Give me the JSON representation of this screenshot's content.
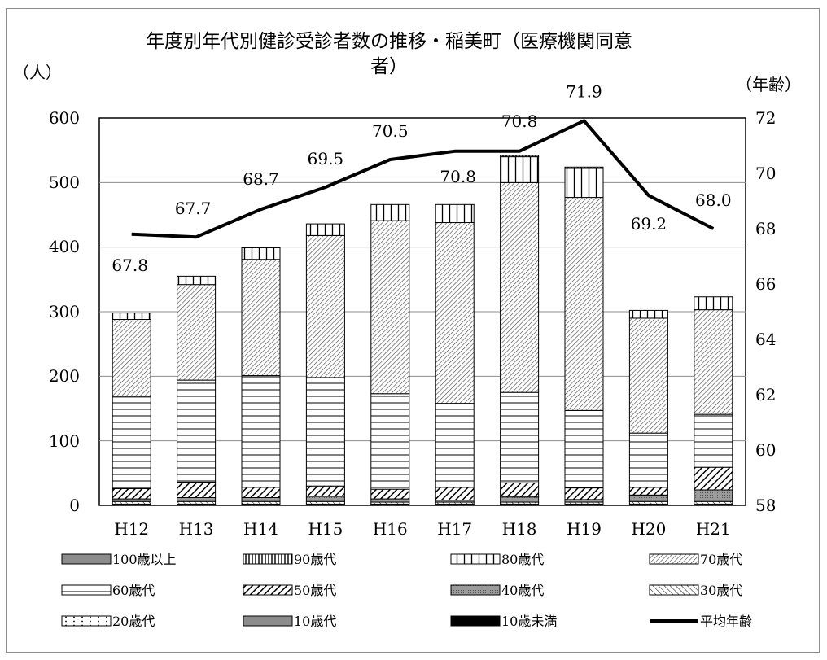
{
  "chart_data": {
    "type": "bar",
    "title_lines": [
      "年度別年代別健診受診者数の推移・稲美町（医療機関同意",
      "者）"
    ],
    "ylabel": "（人）",
    "y2label": "（年齢）",
    "ylim": [
      0,
      600
    ],
    "yticks": [
      "0",
      "100",
      "200",
      "300",
      "400",
      "500",
      "600"
    ],
    "y2lim": [
      58,
      72
    ],
    "y2ticks": [
      "58",
      "60",
      "62",
      "64",
      "66",
      "68",
      "70",
      "72"
    ],
    "grid": true,
    "legend_position": "bottom",
    "categories": [
      "H12",
      "H13",
      "H14",
      "H15",
      "H16",
      "H17",
      "H18",
      "H19",
      "H20",
      "H21"
    ],
    "series": [
      {
        "name": "100歳以上",
        "pattern": "gray",
        "values": [
          0,
          0,
          0,
          0,
          0,
          0,
          0,
          0,
          0,
          0
        ]
      },
      {
        "name": "90歳代",
        "pattern": "vdense",
        "values": [
          0,
          0,
          0,
          0,
          0,
          0,
          2,
          2,
          0,
          0
        ]
      },
      {
        "name": "80歳代",
        "pattern": "vert",
        "values": [
          10,
          13,
          18,
          18,
          25,
          28,
          40,
          45,
          12,
          20
        ]
      },
      {
        "name": "70歳代",
        "pattern": "diag_down",
        "values": [
          120,
          148,
          180,
          220,
          268,
          280,
          325,
          330,
          178,
          162
        ]
      },
      {
        "name": "60歳代",
        "pattern": "horiz",
        "values": [
          142,
          158,
          173,
          168,
          148,
          130,
          140,
          120,
          84,
          82
        ]
      },
      {
        "name": "50歳代",
        "pattern": "diag_down_bold",
        "values": [
          16,
          24,
          16,
          16,
          15,
          20,
          22,
          18,
          12,
          35
        ]
      },
      {
        "name": "40歳代",
        "pattern": "dotgray",
        "values": [
          4,
          6,
          6,
          8,
          5,
          3,
          8,
          4,
          10,
          18
        ]
      },
      {
        "name": "30歳代",
        "pattern": "diag_up",
        "values": [
          4,
          4,
          4,
          4,
          3,
          3,
          3,
          3,
          4,
          4
        ]
      },
      {
        "name": "20歳代",
        "pattern": "dots",
        "values": [
          2,
          2,
          2,
          2,
          2,
          2,
          2,
          2,
          2,
          2
        ]
      },
      {
        "name": "10歳代",
        "pattern": "gray",
        "values": [
          0,
          0,
          0,
          0,
          0,
          0,
          0,
          0,
          0,
          0
        ]
      },
      {
        "name": "10歳未満",
        "pattern": "black",
        "values": [
          0,
          0,
          0,
          0,
          0,
          0,
          0,
          0,
          0,
          0
        ]
      }
    ],
    "line": {
      "name": "平均年齢",
      "values": [
        67.8,
        67.7,
        68.7,
        69.5,
        70.5,
        70.8,
        70.8,
        71.9,
        69.2,
        68.0
      ],
      "labels": [
        "67.8",
        "67.7",
        "68.7",
        "69.5",
        "70.5",
        "70.8",
        "70.8",
        "71.9",
        "69.2",
        "68.0"
      ]
    },
    "legend_order": [
      "100歳以上",
      "90歳代",
      "80歳代",
      "70歳代",
      "60歳代",
      "50歳代",
      "40歳代",
      "30歳代",
      "20歳代",
      "10歳代",
      "10歳未満",
      "平均年齢"
    ]
  }
}
